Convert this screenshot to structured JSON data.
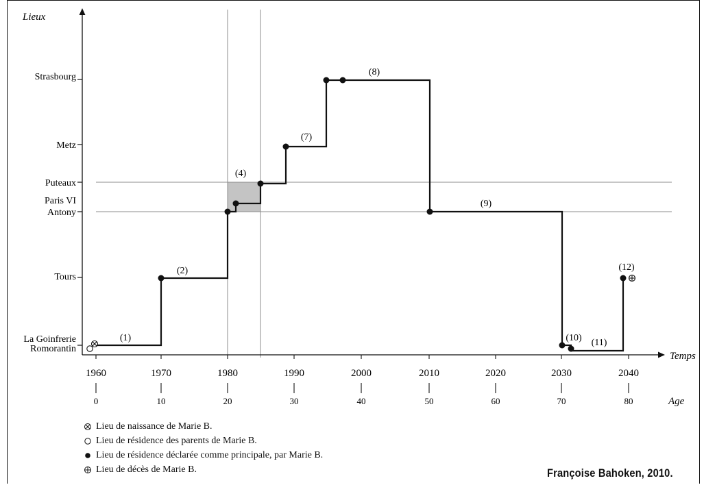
{
  "axes": {
    "y_title": "Lieux",
    "x_title": "Temps",
    "age_title": "Age"
  },
  "places": [
    {
      "label": "Strasbourg"
    },
    {
      "label": "Metz"
    },
    {
      "label": "Puteaux"
    },
    {
      "label": "Paris VI"
    },
    {
      "label": "Antony"
    },
    {
      "label": "Tours"
    },
    {
      "label": "La Goinfrerie"
    },
    {
      "label": "Romorantin"
    }
  ],
  "years": [
    "1960",
    "1970",
    "1980",
    "1990",
    "2000",
    "2010",
    "2020",
    "2030",
    "2040"
  ],
  "ages": [
    "0",
    "10",
    "20",
    "30",
    "40",
    "50",
    "60",
    "70",
    "80"
  ],
  "segments": [
    "(1)",
    "(2)",
    "(4)",
    "(7)",
    "(8)",
    "(9)",
    "(10)",
    "(11)",
    "(12)"
  ],
  "legend": [
    {
      "symbol": "birth",
      "text": "Lieu de naissance de Marie B."
    },
    {
      "symbol": "parents",
      "text": "Lieu de résidence des parents de Marie B."
    },
    {
      "symbol": "main",
      "text": "Lieu de résidence déclarée comme principale, par Marie B."
    },
    {
      "symbol": "death",
      "text": "Lieu de décès de Marie B."
    }
  ],
  "credit": "Françoise Bahoken,  2010."
}
